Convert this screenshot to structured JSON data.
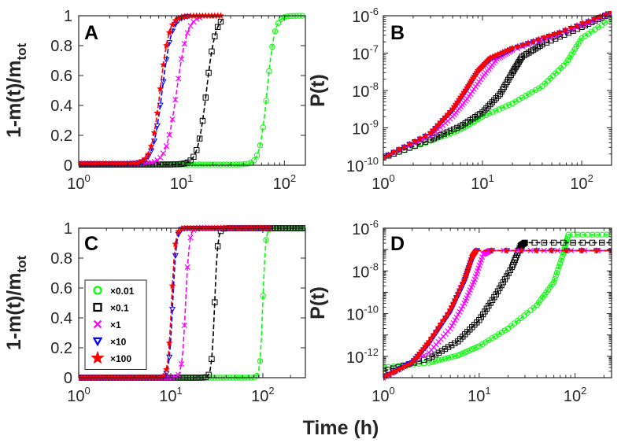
{
  "figure": {
    "xlabel": "Time (h)"
  },
  "legend": {
    "entries": [
      {
        "label": "×0.01",
        "color": "#00ff00",
        "marker": "circle"
      },
      {
        "label": "×0.1",
        "color": "#000000",
        "marker": "square"
      },
      {
        "label": "×1",
        "color": "#ff00ff",
        "marker": "x"
      },
      {
        "label": "×10",
        "color": "#0000ff",
        "marker": "triangle-down"
      },
      {
        "label": "×100",
        "color": "#ff0000",
        "marker": "star"
      }
    ]
  },
  "chart_data": [
    {
      "panel": "A",
      "type": "scatter",
      "xscale": "log",
      "xlim": [
        1,
        160
      ],
      "xticks": [
        {
          "v": 1,
          "base": "10",
          "exp": "0"
        },
        {
          "v": 10,
          "base": "10",
          "exp": "1"
        },
        {
          "v": 100,
          "base": "10",
          "exp": "2"
        }
      ],
      "yscale": "linear",
      "ylim": [
        0,
        1
      ],
      "ylabel": "1-m(t)/m",
      "ylabel_sub": "tot",
      "yticks": [
        {
          "v": 0,
          "label": "0"
        },
        {
          "v": 0.2,
          "label": "0.2"
        },
        {
          "v": 0.4,
          "label": "0.4"
        },
        {
          "v": 0.6,
          "label": "0.6"
        },
        {
          "v": 0.8,
          "label": "0.8"
        },
        {
          "v": 1,
          "label": "1"
        }
      ],
      "model": "logistic",
      "series": [
        {
          "name": "×0.01",
          "color": "#00ff00",
          "marker": "circle",
          "t50": 68,
          "k": 12,
          "floor": 0.005,
          "xmax": 160
        },
        {
          "name": "×0.1",
          "color": "#000000",
          "marker": "square",
          "t50": 17.5,
          "k": 10,
          "floor": 0.005,
          "xmax": 25
        },
        {
          "name": "×1",
          "color": "#ff00ff",
          "marker": "x",
          "t50": 9,
          "k": 8.5,
          "floor": 0.01,
          "xmax": 16
        },
        {
          "name": "×10",
          "color": "#0000ff",
          "marker": "triangle-down",
          "t50": 6.5,
          "k": 9.5,
          "floor": 0.01,
          "xmax": 12
        },
        {
          "name": "×100",
          "color": "#ff0000",
          "marker": "star",
          "t50": 6.2,
          "k": 10,
          "floor": 0.01,
          "xmax": 25
        }
      ]
    },
    {
      "panel": "B",
      "type": "scatter",
      "xscale": "log",
      "xlim": [
        1,
        200
      ],
      "xticks": [
        {
          "v": 1,
          "base": "10",
          "exp": "0"
        },
        {
          "v": 10,
          "base": "10",
          "exp": "1"
        },
        {
          "v": 100,
          "base": "10",
          "exp": "2"
        }
      ],
      "yscale": "log",
      "ylim": [
        1e-10,
        1e-06
      ],
      "ylabel": "P(t)",
      "ylabel_sub": "",
      "yticks": [
        {
          "v": 1e-10,
          "base": "10",
          "exp": "-10"
        },
        {
          "v": 1e-09,
          "base": "10",
          "exp": "-9"
        },
        {
          "v": 1e-08,
          "base": "10",
          "exp": "-8"
        },
        {
          "v": 1e-07,
          "base": "10",
          "exp": "-7"
        },
        {
          "v": 1e-06,
          "base": "10",
          "exp": "-6"
        }
      ],
      "model": "points",
      "series": [
        {
          "name": "×0.01",
          "color": "#00ff00",
          "marker": "circle",
          "points": [
            [
              1,
              1.6e-10
            ],
            [
              3,
              4.5e-10
            ],
            [
              6,
              9e-10
            ],
            [
              10,
              2e-09
            ],
            [
              20,
              4.5e-09
            ],
            [
              40,
              1.3e-08
            ],
            [
              70,
              5.5e-08
            ],
            [
              100,
              2.5e-07
            ],
            [
              200,
              8.5e-07
            ]
          ]
        },
        {
          "name": "×0.1",
          "color": "#000000",
          "marker": "square",
          "points": [
            [
              1,
              1.6e-10
            ],
            [
              3,
              4.8e-10
            ],
            [
              6,
              1.1e-09
            ],
            [
              10,
              2.6e-09
            ],
            [
              15,
              8e-09
            ],
            [
              20,
              3e-08
            ],
            [
              25,
              8e-08
            ],
            [
              40,
              1.7e-07
            ],
            [
              100,
              5e-07
            ],
            [
              200,
              1.2e-06
            ]
          ]
        },
        {
          "name": "×1",
          "color": "#ff00ff",
          "marker": "x",
          "points": [
            [
              1,
              1.6e-10
            ],
            [
              3,
              6e-10
            ],
            [
              5,
              2e-09
            ],
            [
              7,
              6e-09
            ],
            [
              10,
              2.3e-08
            ],
            [
              14,
              7e-08
            ],
            [
              20,
              1.2e-07
            ],
            [
              60,
              3.2e-07
            ],
            [
              200,
              1.1e-06
            ]
          ]
        },
        {
          "name": "×10",
          "color": "#0000ff",
          "marker": "triangle-down",
          "points": [
            [
              1,
              1.6e-10
            ],
            [
              3,
              7e-10
            ],
            [
              5,
              3e-09
            ],
            [
              7,
              1.1e-08
            ],
            [
              9,
              3.2e-08
            ],
            [
              12,
              7e-08
            ],
            [
              20,
              1.3e-07
            ],
            [
              60,
              3.5e-07
            ],
            [
              200,
              1.2e-06
            ]
          ]
        },
        {
          "name": "×100",
          "color": "#ff0000",
          "marker": "star",
          "points": [
            [
              1,
              1.6e-10
            ],
            [
              3,
              7.2e-10
            ],
            [
              5,
              3.2e-09
            ],
            [
              7,
              1.2e-08
            ],
            [
              9,
              3.4e-08
            ],
            [
              12,
              7.5e-08
            ],
            [
              20,
              1.35e-07
            ],
            [
              60,
              3.6e-07
            ],
            [
              200,
              1.25e-06
            ]
          ]
        }
      ]
    },
    {
      "panel": "C",
      "type": "scatter",
      "xscale": "log",
      "xlim": [
        1,
        290
      ],
      "xticks": [
        {
          "v": 1,
          "base": "10",
          "exp": "0"
        },
        {
          "v": 10,
          "base": "10",
          "exp": "1"
        },
        {
          "v": 100,
          "base": "10",
          "exp": "2"
        }
      ],
      "yscale": "linear",
      "ylim": [
        0,
        1
      ],
      "ylabel": "1-m(t)/m",
      "ylabel_sub": "tot",
      "yticks": [
        {
          "v": 0,
          "label": "0"
        },
        {
          "v": 0.2,
          "label": "0.2"
        },
        {
          "v": 0.4,
          "label": "0.4"
        },
        {
          "v": 0.6,
          "label": "0.6"
        },
        {
          "v": 0.8,
          "label": "0.8"
        },
        {
          "v": 1,
          "label": "1"
        }
      ],
      "model": "logistic",
      "series": [
        {
          "name": "×0.01",
          "color": "#00ff00",
          "marker": "circle",
          "t50": 100,
          "k": 30,
          "floor": 0,
          "xmax": 290
        },
        {
          "name": "×0.1",
          "color": "#000000",
          "marker": "square",
          "t50": 30,
          "k": 26,
          "floor": 0,
          "xmax": 290
        },
        {
          "name": "×1",
          "color": "#ff00ff",
          "marker": "x",
          "t50": 14.5,
          "k": 22,
          "floor": 0,
          "xmax": 120
        },
        {
          "name": "×10",
          "color": "#0000ff",
          "marker": "triangle-down",
          "t50": 10.5,
          "k": 22,
          "floor": 0,
          "xmax": 120
        },
        {
          "name": "×100",
          "color": "#ff0000",
          "marker": "star",
          "t50": 10.2,
          "k": 22,
          "floor": 0,
          "xmax": 120
        }
      ]
    },
    {
      "panel": "D",
      "type": "scatter",
      "xscale": "log",
      "xlim": [
        1,
        240
      ],
      "xticks": [
        {
          "v": 1,
          "base": "10",
          "exp": "0"
        },
        {
          "v": 10,
          "base": "10",
          "exp": "1"
        },
        {
          "v": 100,
          "base": "10",
          "exp": "2"
        }
      ],
      "yscale": "log",
      "ylim": [
        1e-13,
        1e-06
      ],
      "ylabel": "P(t)",
      "ylabel_sub": "",
      "yticks": [
        {
          "v": 1e-12,
          "base": "10",
          "exp": "-12"
        },
        {
          "v": 1e-10,
          "base": "10",
          "exp": "-10"
        },
        {
          "v": 1e-08,
          "base": "10",
          "exp": "-8"
        },
        {
          "v": 1e-06,
          "base": "10",
          "exp": "-6"
        }
      ],
      "model": "points",
      "series": [
        {
          "name": "×0.01",
          "color": "#00ff00",
          "marker": "circle",
          "points": [
            [
              1,
              3e-13
            ],
            [
              3,
              5e-13
            ],
            [
              6,
              1.1e-12
            ],
            [
              10,
              3e-12
            ],
            [
              20,
              2e-11
            ],
            [
              40,
              2.5e-10
            ],
            [
              60,
              3e-09
            ],
            [
              75,
              6e-08
            ],
            [
              85,
              5e-07
            ],
            [
              240,
              5e-07
            ]
          ]
        },
        {
          "name": "×0.1",
          "color": "#000000",
          "marker": "square",
          "points": [
            [
              1,
              2e-13
            ],
            [
              3,
              8e-13
            ],
            [
              6,
              5e-12
            ],
            [
              10,
              5e-11
            ],
            [
              15,
              8e-10
            ],
            [
              22,
              1.5e-08
            ],
            [
              27,
              1.5e-07
            ],
            [
              30,
              2.1e-07
            ],
            [
              240,
              2.1e-07
            ]
          ]
        },
        {
          "name": "×1",
          "color": "#ff00ff",
          "marker": "x",
          "points": [
            [
              1,
              1e-13
            ],
            [
              3,
              1.5e-12
            ],
            [
              5,
              2e-11
            ],
            [
              7,
              3e-10
            ],
            [
              9,
              4e-09
            ],
            [
              11,
              6e-08
            ],
            [
              13,
              9e-08
            ],
            [
              240,
              9e-08
            ]
          ]
        },
        {
          "name": "×10",
          "color": "#0000ff",
          "marker": "triangle-down",
          "points": [
            [
              1,
              1e-13
            ],
            [
              2,
              5e-13
            ],
            [
              3,
              4e-12
            ],
            [
              5,
              1.2e-10
            ],
            [
              7,
              3e-09
            ],
            [
              8.5,
              4e-08
            ],
            [
              9.5,
              9e-08
            ],
            [
              240,
              9e-08
            ]
          ]
        },
        {
          "name": "×100",
          "color": "#ff0000",
          "marker": "star",
          "points": [
            [
              1,
              1e-13
            ],
            [
              2,
              5e-13
            ],
            [
              3,
              5e-12
            ],
            [
              5,
              1.5e-10
            ],
            [
              7,
              4e-09
            ],
            [
              8.5,
              5e-08
            ],
            [
              9.3,
              9e-08
            ],
            [
              240,
              9e-08
            ]
          ]
        }
      ]
    }
  ]
}
